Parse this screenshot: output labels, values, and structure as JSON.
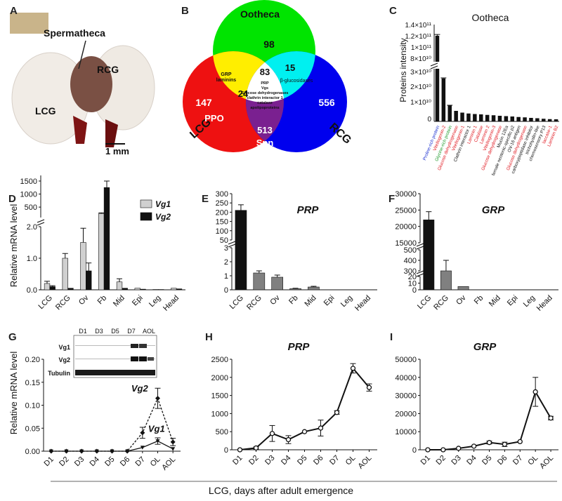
{
  "panels": {
    "A": {
      "letter": "A",
      "labels": {
        "spermatheca": "Spermatheca",
        "rcg": "RCG",
        "lcg": "LCG",
        "scale": "1 mm"
      }
    },
    "B": {
      "letter": "B",
      "titles": {
        "ootheca": "Ootheca",
        "lcg": "LCG",
        "rcg": "RCG"
      },
      "regions": {
        "ootheca_only": "98",
        "lcg_only": "147",
        "lcg_only_label": "PPO",
        "rcg_only": "556",
        "ootheca_lcg": "24",
        "ootheca_lcg_label": "GRP\nlaminins",
        "ootheca_rcg": "15",
        "ootheca_rcg_label": "β-glucosidases",
        "lcg_rcg": "513",
        "lcg_rcg_label": "Spn",
        "all_three": "83",
        "all_three_label": "PRP\nVgs\nGlucose dehydrogenases\nclathrin interactor 1\ncatalase\napolipoproteins"
      }
    },
    "C": {
      "letter": "C",
      "title": "Ootheca",
      "ylabel": "Proteins intensity",
      "upper_ticks": [
        "1.4×10¹¹",
        "1.2×10¹¹",
        "1×10¹¹",
        "8×10¹⁰"
      ],
      "lower_ticks": [
        "3×10¹⁰",
        "2×10¹⁰",
        "1×10¹⁰",
        "0"
      ]
    },
    "D": {
      "letter": "D"
    },
    "E": {
      "letter": "E"
    },
    "F": {
      "letter": "F"
    },
    "G": {
      "letter": "G",
      "blot": {
        "lanes": [
          "D1",
          "D3",
          "D5",
          "D7",
          "AOL"
        ],
        "rows": [
          "Vg1",
          "Vg2",
          "Tubulin"
        ]
      }
    },
    "H": {
      "letter": "H"
    },
    "I": {
      "letter": "I"
    }
  },
  "footer": {
    "label": "LCG, days after adult emergence"
  },
  "colors": {
    "ootheca_circle": "#00e400",
    "lcg_circle": "#ee1111",
    "rcg_circle": "#0000ee",
    "ootheca_lcg": "#ffee00",
    "ootheca_rcg": "#00f0f0",
    "lcg_rcg": "#7a2090",
    "center": "#ffffff",
    "vg1_bar": "#d0d0d0",
    "vg2_bar": "#111111",
    "gray_bar": "#808080",
    "label_blue": "#1a2fd0",
    "label_red": "#e0161e",
    "label_green": "#1d9a2a",
    "label_black": "#111111"
  },
  "chart_data": [
    {
      "id": "C",
      "type": "bar",
      "title": "Ootheca",
      "ylabel": "Proteins intensity",
      "categories": [
        "Proline-rich protein",
        "Vitellogenin-2",
        "Glycine-rich protein",
        "Glucose dehydrogenase",
        "Vitellogenin-1",
        "Clathrin interactor 1",
        "Laminin 1",
        "Catalase",
        "Laminin 2",
        "Vitellogenin-3",
        "Glucose dehydrogenase",
        "Mucin 12Ea",
        "female neotenic-specific p2",
        "OV-16 antigen",
        "Glucose dehydrogenase",
        "carboxypeptidase inhibitor",
        "trichohyalin-like",
        "chemosensory P13",
        "laccase-1",
        "Laminin B2"
      ],
      "label_colors": [
        "blue",
        "red",
        "green",
        "red",
        "red",
        "black",
        "red",
        "red",
        "red",
        "red",
        "red",
        "black",
        "black",
        "black",
        "red",
        "black",
        "black",
        "black",
        "red",
        "red"
      ],
      "values": [
        122000000000,
        24500000000,
        9000000000,
        6000000000,
        5000000000,
        4500000000,
        4200000000,
        4000000000,
        3700000000,
        3500000000,
        3200000000,
        3000000000,
        2800000000,
        2500000000,
        2300000000,
        2000000000,
        1800000000,
        1500000000,
        1300000000,
        1200000000
      ],
      "errors": [
        2000000000,
        300000000,
        200000000,
        0,
        0,
        0,
        0,
        0,
        0,
        0,
        0,
        0,
        0,
        0,
        0,
        0,
        0,
        0,
        0,
        0
      ],
      "y_break": true,
      "ylim_lower": [
        0,
        30000000000
      ],
      "ylim_upper": [
        80000000000,
        140000000000
      ]
    },
    {
      "id": "D",
      "type": "bar",
      "ylabel": "Relative mRNA level",
      "categories": [
        "LCG",
        "RCG",
        "Ov",
        "Fb",
        "Mid",
        "Epi",
        "Leg",
        "Head"
      ],
      "series": [
        {
          "name": "Vg1",
          "values": [
            0.2,
            1.0,
            1.5,
            250,
            0.25,
            0.05,
            0.01,
            0.05
          ],
          "errors": [
            0.07,
            0.15,
            0.45,
            30,
            0.1,
            0,
            0,
            0
          ]
        },
        {
          "name": "Vg2",
          "values": [
            0.1,
            0.05,
            0.6,
            1250,
            0.05,
            0.02,
            0.01,
            0.03
          ],
          "errors": [
            0.03,
            0,
            0.25,
            280,
            0,
            0,
            0,
            0
          ]
        }
      ],
      "y_break": true,
      "lower_ticks": [
        0,
        1.0,
        2.0
      ],
      "upper_ticks": [
        500,
        1000,
        1500
      ]
    },
    {
      "id": "E",
      "type": "bar",
      "title": "PRP",
      "categories": [
        "LCG",
        "RCG",
        "Ov",
        "Fb",
        "Mid",
        "Epi",
        "Leg",
        "Head"
      ],
      "values": [
        210,
        1.2,
        0.9,
        0.08,
        0.2,
        0,
        0,
        0
      ],
      "errors": [
        30,
        0.15,
        0.15,
        0.03,
        0.05,
        0,
        0,
        0
      ],
      "y_break": true,
      "lower_ticks": [
        0,
        1,
        2,
        3
      ],
      "upper_ticks": [
        50,
        100,
        150,
        200,
        250,
        300
      ]
    },
    {
      "id": "F",
      "type": "bar",
      "title": "GRP",
      "categories": [
        "LCG",
        "RCG",
        "Ov",
        "Fb",
        "Mid",
        "Epi",
        "Leg",
        "Head"
      ],
      "values": [
        22000,
        300,
        5,
        0,
        0,
        0,
        0,
        0
      ],
      "errors": [
        2500,
        100,
        0,
        0,
        0,
        0,
        0,
        0
      ],
      "y_break": true,
      "lower_ticks": [
        0,
        10,
        20,
        300,
        400,
        500
      ],
      "upper_ticks": [
        15000,
        20000,
        25000,
        30000
      ]
    },
    {
      "id": "G",
      "type": "line",
      "ylabel": "Relative mRNA level",
      "x": [
        "D1",
        "D2",
        "D3",
        "D4",
        "D5",
        "D6",
        "D7",
        "OL",
        "AOL"
      ],
      "series": [
        {
          "name": "Vg1",
          "values": [
            0,
            0,
            0,
            0,
            0,
            0,
            0.008,
            0.022,
            0.005
          ],
          "errors": [
            0,
            0,
            0,
            0,
            0,
            0,
            0,
            0.007,
            0
          ]
        },
        {
          "name": "Vg2",
          "values": [
            0,
            0,
            0,
            0,
            0,
            0,
            0.04,
            0.115,
            0.02
          ],
          "errors": [
            0,
            0,
            0,
            0,
            0,
            0,
            0.012,
            0.022,
            0.008
          ]
        }
      ],
      "ylim": [
        0,
        0.2
      ],
      "yticks": [
        0,
        0.05,
        0.1,
        0.15,
        0.2
      ]
    },
    {
      "id": "H",
      "type": "line",
      "title": "PRP",
      "x": [
        "D1",
        "D2",
        "D3",
        "D4",
        "D5",
        "D6",
        "D7",
        "OL",
        "AOL"
      ],
      "values": [
        0,
        50,
        450,
        280,
        500,
        600,
        1030,
        2250,
        1720
      ],
      "errors": [
        0,
        30,
        220,
        110,
        0,
        220,
        50,
        130,
        100
      ],
      "ylim": [
        0,
        2500
      ],
      "yticks": [
        0,
        500,
        1000,
        1500,
        2000,
        2500
      ]
    },
    {
      "id": "I",
      "type": "line",
      "title": "GRP",
      "x": [
        "D1",
        "D2",
        "D3",
        "D4",
        "D5",
        "D6",
        "D7",
        "OL",
        "AOL"
      ],
      "values": [
        0,
        0,
        800,
        2000,
        4000,
        3000,
        4500,
        32000,
        17500
      ],
      "errors": [
        0,
        0,
        0,
        0,
        800,
        1200,
        0,
        8000,
        1000
      ],
      "ylim": [
        0,
        50000
      ],
      "yticks": [
        0,
        10000,
        20000,
        30000,
        40000,
        50000
      ]
    }
  ]
}
